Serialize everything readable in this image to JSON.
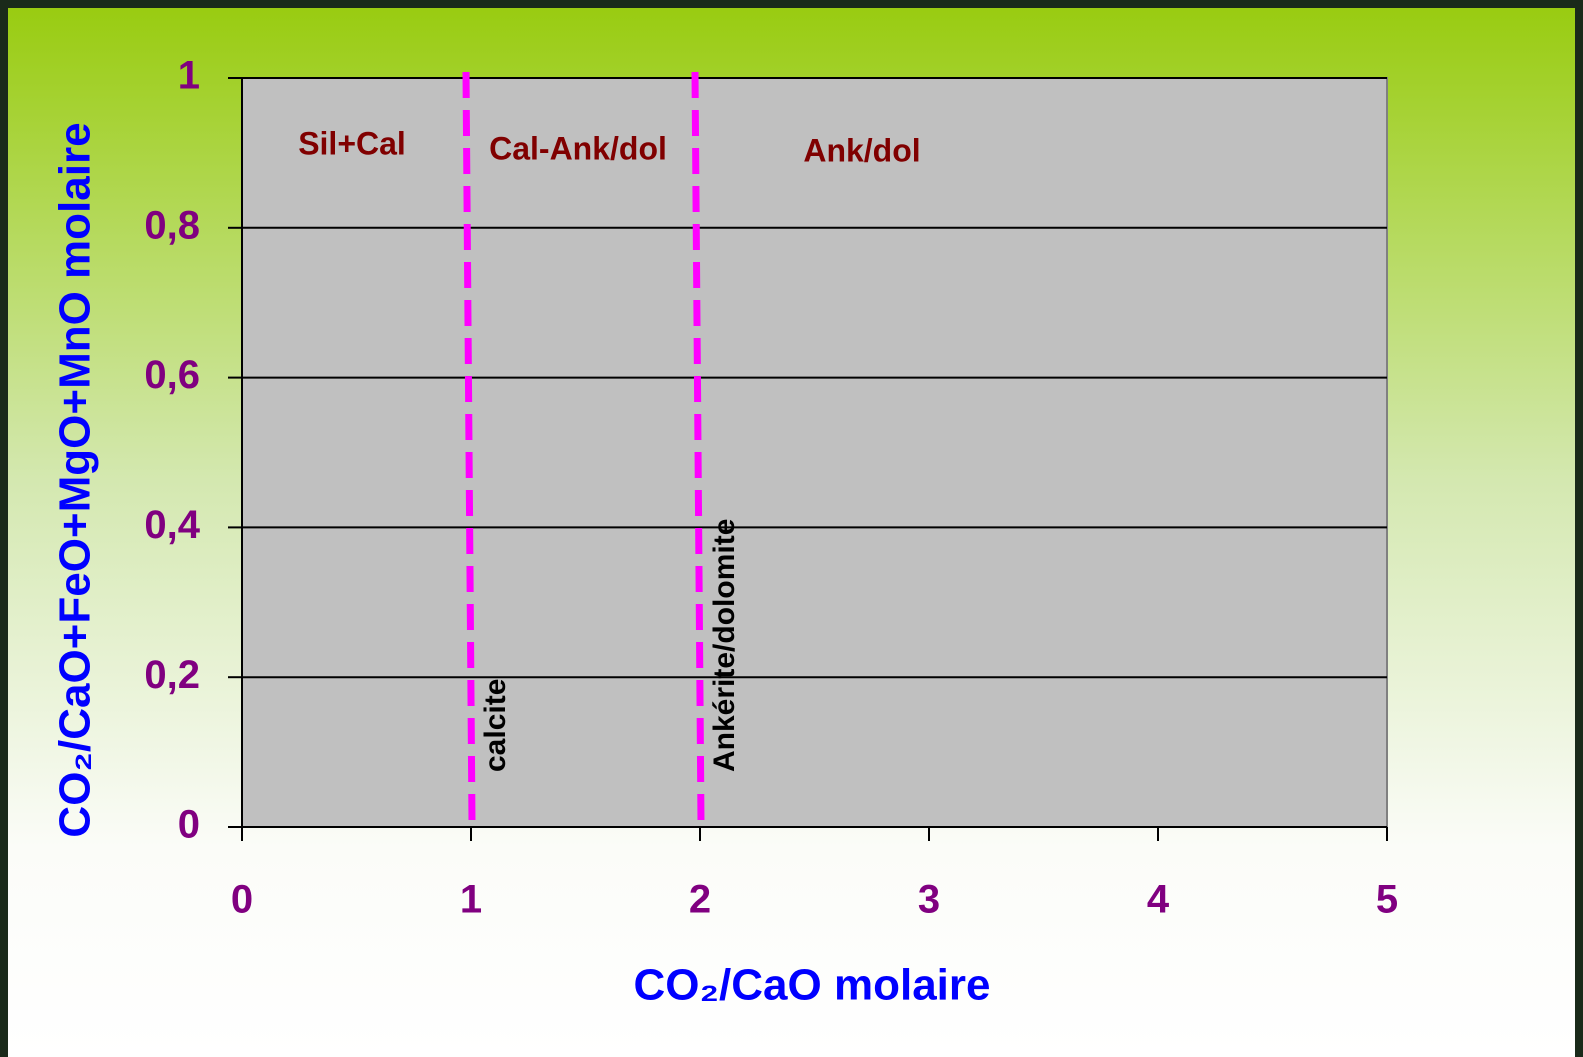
{
  "chart_data": {
    "type": "scatter",
    "xlabel": "CO₂/CaO molaire",
    "ylabel": "CO₂/CaO+FeO+MgO+MnO molaire",
    "xlim": [
      0,
      5
    ],
    "ylim": [
      0,
      1
    ],
    "xticks": [
      0,
      1,
      2,
      3,
      4,
      5
    ],
    "yticks": [
      0,
      {
        "value": 0.2,
        "label": "0,2"
      },
      {
        "value": 0.4,
        "label": "0,4"
      },
      {
        "value": 0.6,
        "label": "0,6"
      },
      {
        "value": 0.8,
        "label": "0,8"
      },
      1
    ],
    "grid": true,
    "vlines": [
      {
        "x": 1,
        "label": "calcite"
      },
      {
        "x": 2,
        "label": "Ankérite/dolomite"
      }
    ],
    "vline_color": "#ff00ff",
    "regions": [
      {
        "label": "Sil+Cal"
      },
      {
        "label": "Cal-Ank/dol"
      },
      {
        "label": "Ank/dol"
      }
    ]
  }
}
